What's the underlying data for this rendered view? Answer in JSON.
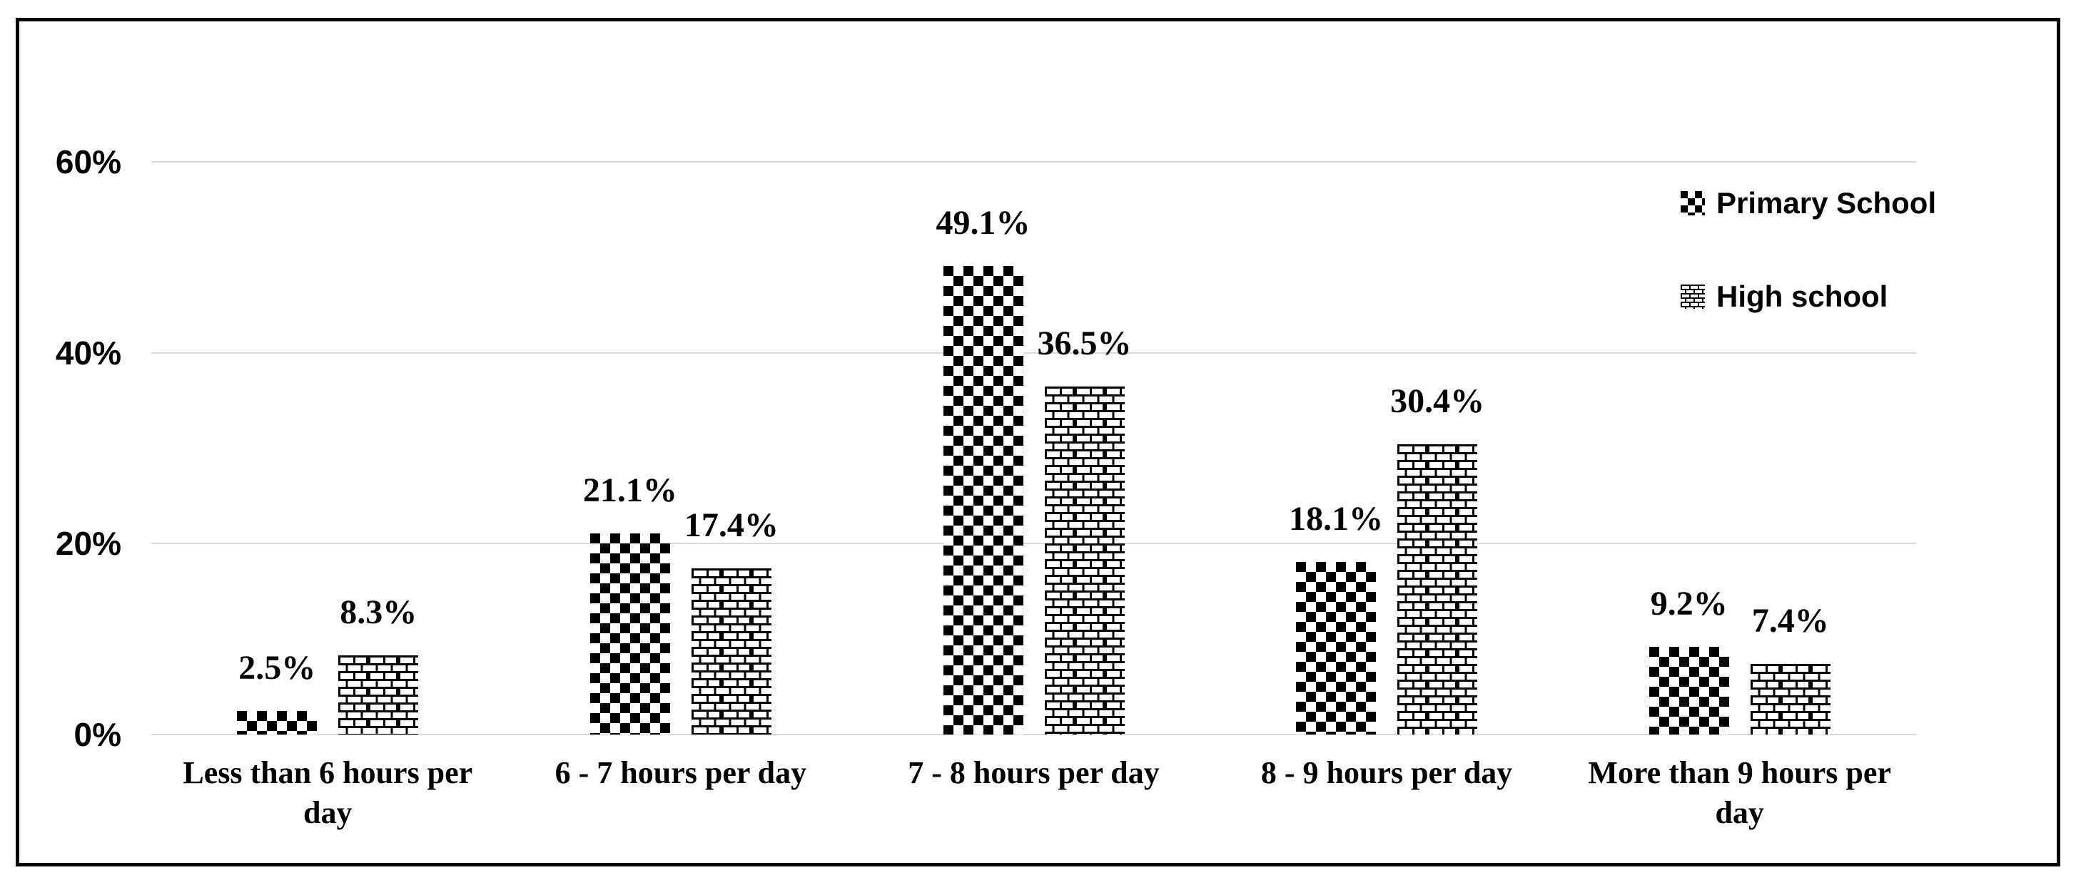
{
  "chart_data": {
    "type": "bar",
    "title": "",
    "categories": [
      "Less than 6 hours per day",
      "6 - 7 hours per day",
      "7 - 8 hours per day",
      "8 - 9 hours per day",
      "More than 9 hours per day"
    ],
    "series": [
      {
        "name": "Primary School",
        "pattern": "checkerboard",
        "values": [
          2.5,
          21.1,
          49.1,
          18.1,
          9.2
        ],
        "labels": [
          "2.5%",
          "21.1%",
          "49.1%",
          "18.1%",
          "9.2%"
        ]
      },
      {
        "name": "High school",
        "pattern": "brick",
        "values": [
          8.3,
          17.4,
          36.5,
          30.4,
          7.4
        ],
        "labels": [
          "8.3%",
          "17.4%",
          "36.5%",
          "30.4%",
          "7.4%"
        ]
      }
    ],
    "y_axis": {
      "ticks": [
        "0%",
        "20%",
        "40%",
        "60%"
      ],
      "tick_values": [
        0,
        20,
        40,
        60
      ],
      "max": 60,
      "gridlines": true
    },
    "legend_position": "top-right",
    "colors": {
      "foreground": "#000000",
      "background": "#ffffff",
      "gridline": "#d9d9d9",
      "frame_border": "#000000"
    }
  }
}
